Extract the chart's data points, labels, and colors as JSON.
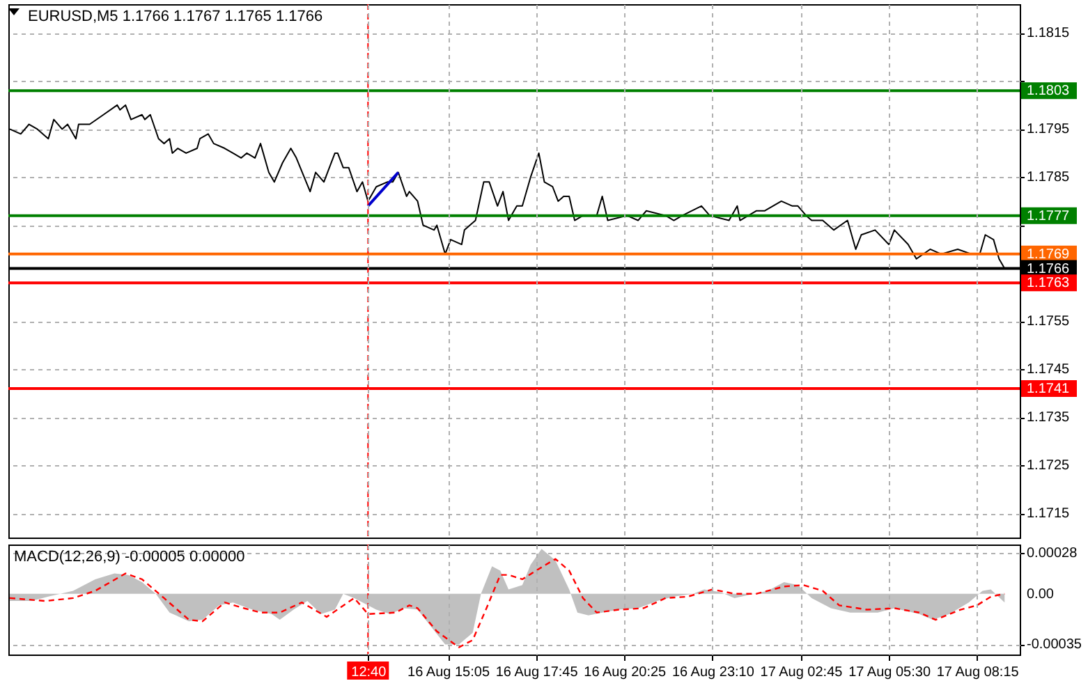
{
  "chart_data": [
    {
      "type": "line",
      "title": "EURUSD,M5 1.1766 1.1767 1.1765 1.1766",
      "categories": [
        null,
        null,
        null,
        null,
        null,
        null,
        null,
        null,
        null,
        null,
        null,
        null,
        null,
        null,
        null,
        null,
        null,
        null,
        null,
        null,
        null,
        null,
        null,
        null,
        null,
        null,
        null,
        null,
        null,
        null,
        null,
        null,
        null,
        null,
        null,
        null,
        null,
        null,
        null,
        null,
        null,
        null,
        null,
        null,
        null,
        null,
        null,
        null,
        null,
        null,
        null,
        null,
        null,
        null,
        null,
        null,
        null,
        null,
        null,
        null,
        null,
        null,
        null,
        null,
        null,
        null,
        null,
        null,
        null,
        null,
        null,
        null,
        null,
        null,
        null,
        null,
        null,
        null,
        null,
        null,
        null,
        null,
        null,
        null,
        null,
        null,
        null,
        null,
        null,
        null,
        null,
        null,
        null,
        null,
        null,
        null,
        null,
        null,
        null,
        null,
        null,
        null,
        null,
        null,
        null,
        null,
        null,
        null,
        null,
        null,
        null,
        null,
        null,
        null,
        null,
        null,
        null,
        null,
        null,
        null,
        null,
        null,
        null,
        null,
        null,
        null,
        null,
        null,
        null,
        null,
        "12:40",
        null,
        null,
        null,
        null,
        null,
        null,
        null,
        null,
        null,
        null,
        null,
        null,
        null,
        null,
        null,
        null,
        null,
        null,
        null,
        null,
        null,
        null,
        null,
        null,
        null,
        null,
        null,
        null,
        "16 Aug 15:05",
        null,
        null,
        null,
        null,
        null,
        null,
        null,
        null,
        null,
        null,
        null,
        null,
        null,
        null,
        null,
        null,
        null,
        null,
        null,
        null,
        null,
        null,
        null,
        null,
        null,
        null,
        null,
        null,
        null,
        null,
        null,
        "16 Aug 17:45",
        null,
        null,
        null,
        null,
        null,
        null,
        null,
        null,
        null,
        null,
        null,
        null,
        null,
        null,
        null,
        null,
        null,
        null,
        null,
        null,
        null,
        null,
        null,
        null,
        null,
        null,
        null,
        null,
        null,
        null,
        null,
        "16 Aug 20:25",
        null,
        null,
        null,
        null,
        null,
        null,
        null,
        null,
        null,
        null,
        null,
        null,
        null,
        null,
        null,
        null,
        null,
        null,
        null,
        null,
        null,
        null,
        null,
        null,
        null,
        null,
        null,
        null,
        null,
        null,
        null,
        "16 Aug 23:10",
        null,
        null,
        null,
        null,
        null,
        null,
        null,
        null,
        null,
        null,
        null,
        null,
        null,
        null,
        null,
        null,
        null,
        null,
        null,
        null,
        null,
        null,
        null,
        null,
        null,
        null,
        null,
        null,
        null,
        null,
        null,
        "17 Aug 02:45",
        null,
        null,
        null,
        null,
        null,
        null,
        null,
        null,
        null,
        null,
        null,
        null,
        null,
        null,
        null,
        null,
        null,
        null,
        null,
        null,
        null,
        null,
        null,
        null,
        null,
        null,
        null,
        null,
        null,
        null,
        null,
        "17 Aug 05:30",
        null,
        null,
        null,
        null,
        null,
        null,
        null,
        null,
        null,
        null,
        null,
        null,
        null,
        null,
        null,
        null,
        null,
        null,
        null,
        null,
        null,
        null,
        null,
        null,
        null,
        null,
        null,
        null,
        null,
        null,
        null,
        "17 Aug 08:15",
        null,
        null,
        null,
        null,
        null,
        null,
        null,
        null,
        null,
        null,
        null,
        null,
        null,
        null,
        null
      ],
      "series": [
        {
          "color": "#000000",
          "values": [
            1.1795,
            null,
            null,
            null,
            1.1794,
            null,
            null,
            1.1796,
            null,
            null,
            1.1795,
            null,
            null,
            null,
            1.1793,
            null,
            1.1797,
            null,
            null,
            1.1795,
            null,
            1.1796,
            null,
            null,
            1.1793,
            1.1796,
            null,
            null,
            null,
            1.1796,
            null,
            null,
            null,
            null,
            1.1798,
            null,
            null,
            null,
            null,
            1.18,
            1.1799,
            null,
            1.18,
            null,
            1.1797,
            null,
            null,
            null,
            1.1798,
            1.1797,
            null,
            1.1798,
            null,
            null,
            1.1793,
            null,
            1.1792,
            null,
            1.1793,
            1.179,
            null,
            1.1791,
            null,
            null,
            1.179,
            null,
            null,
            null,
            1.1791,
            1.1793,
            null,
            null,
            1.1794,
            null,
            1.1792,
            null,
            null,
            null,
            1.1791,
            null,
            null,
            1.179,
            null,
            null,
            1.1789,
            null,
            1.179,
            null,
            null,
            1.1789,
            null,
            1.1792,
            null,
            null,
            1.1786,
            null,
            1.1784,
            null,
            null,
            1.1788,
            null,
            null,
            1.1791,
            null,
            1.1789,
            null,
            null,
            null,
            null,
            1.1782,
            null,
            1.1786,
            null,
            null,
            1.1784,
            null,
            null,
            null,
            1.179,
            1.179,
            null,
            1.1787,
            null,
            1.1787,
            null,
            null,
            1.1782,
            null,
            1.1784,
            null,
            1.178,
            null,
            null,
            1.1783,
            null,
            null,
            null,
            1.1784,
            null,
            1.1784,
            null,
            1.1786,
            null,
            null,
            1.1781,
            1.1782,
            null,
            null,
            1.178,
            null,
            1.1775,
            null,
            null,
            null,
            1.1774,
            1.1775,
            null,
            null,
            1.1769,
            null,
            1.1772,
            null,
            null,
            null,
            1.1771,
            1.1774,
            null,
            null,
            null,
            1.1776,
            null,
            null,
            1.1784,
            null,
            1.1784,
            null,
            null,
            1.1779,
            null,
            1.1782,
            null,
            1.1776,
            null,
            null,
            1.1779,
            null,
            1.1779,
            null,
            null,
            1.1785,
            null,
            null,
            1.179,
            null,
            1.1784,
            null,
            null,
            1.1783,
            null,
            1.178,
            null,
            1.1781,
            null,
            1.1781,
            null,
            1.1776,
            null,
            null,
            1.1777,
            null,
            null,
            null,
            null,
            1.1777,
            null,
            1.1781,
            null,
            1.1776,
            null,
            null,
            null,
            null,
            null,
            null,
            1.1777,
            null,
            null,
            null,
            1.1776,
            null,
            null,
            1.1778,
            null,
            null,
            null,
            null,
            null,
            null,
            1.1777,
            null,
            null,
            1.1776,
            null,
            null,
            1.1777,
            null,
            null,
            null,
            null,
            null,
            null,
            1.1779,
            null,
            null,
            1.1777,
            null,
            null,
            null,
            null,
            null,
            null,
            1.1776,
            null,
            null,
            1.1779,
            1.1776,
            null,
            null,
            1.1777,
            null,
            null,
            1.1778,
            null,
            null,
            1.1778,
            null,
            null,
            null,
            null,
            null,
            1.178,
            null,
            null,
            null,
            1.1779,
            null,
            1.1779,
            null,
            null,
            1.1777,
            null,
            1.1776,
            null,
            null,
            null,
            1.1776,
            null,
            null,
            null,
            1.1774,
            null,
            null,
            null,
            null,
            1.1776,
            null,
            null,
            1.177,
            null,
            1.1773,
            null,
            null,
            null,
            null,
            1.1774,
            null,
            null,
            null,
            null,
            1.1771,
            null,
            1.1774,
            null,
            null,
            null,
            null,
            1.1771,
            null,
            null,
            1.1768,
            null,
            null,
            null,
            null,
            1.177,
            null,
            null,
            null,
            1.1769,
            null,
            null,
            null,
            null,
            null,
            1.177,
            null,
            null,
            null,
            null,
            1.1769,
            null,
            null,
            1.1769,
            null,
            1.1773,
            null,
            null,
            1.1772,
            null,
            1.1768,
            null,
            1.1766,
            null,
            null,
            null,
            null,
            null
          ]
        },
        {
          "color": "#0000cd",
          "values": [
            null,
            null,
            null,
            null,
            null,
            null,
            null,
            null,
            null,
            null,
            null,
            null,
            null,
            null,
            null,
            null,
            null,
            null,
            null,
            null,
            null,
            null,
            null,
            null,
            null,
            null,
            null,
            null,
            null,
            null,
            null,
            null,
            null,
            null,
            null,
            null,
            null,
            null,
            null,
            null,
            null,
            null,
            null,
            null,
            null,
            null,
            null,
            null,
            null,
            null,
            null,
            null,
            null,
            null,
            null,
            null,
            null,
            null,
            null,
            null,
            null,
            null,
            null,
            null,
            null,
            null,
            null,
            null,
            null,
            null,
            null,
            null,
            null,
            null,
            null,
            null,
            null,
            null,
            null,
            null,
            null,
            null,
            null,
            null,
            null,
            null,
            null,
            null,
            null,
            null,
            null,
            null,
            null,
            null,
            null,
            null,
            null,
            null,
            null,
            null,
            null,
            null,
            null,
            null,
            null,
            null,
            null,
            null,
            null,
            null,
            null,
            null,
            null,
            null,
            null,
            null,
            null,
            null,
            null,
            null,
            null,
            null,
            null,
            null,
            null,
            null,
            null,
            null,
            null,
            null,
            1.1779,
            null,
            null,
            null,
            null,
            null,
            null,
            null,
            null,
            null,
            null,
            1.1786,
            null,
            null,
            null,
            null,
            null,
            null,
            null,
            null,
            null,
            null,
            null,
            null,
            null,
            null,
            null,
            null,
            null,
            null,
            null,
            null,
            null,
            null,
            null,
            null,
            null,
            null,
            null,
            null,
            null,
            null,
            null,
            null,
            null,
            null,
            null,
            null,
            null,
            null,
            null,
            null,
            null,
            null,
            null,
            null,
            null,
            null,
            null,
            null,
            null,
            null,
            null,
            null,
            null,
            null,
            null,
            null,
            null,
            null,
            null,
            null,
            null,
            null,
            null,
            null,
            null,
            null,
            null,
            null,
            null,
            null,
            null,
            null,
            null,
            null,
            null,
            null,
            null,
            null,
            null,
            null,
            null,
            null,
            null,
            null,
            null,
            null,
            null,
            null,
            null,
            null,
            null,
            null,
            null,
            null,
            null,
            null,
            null,
            null,
            null,
            null,
            null,
            null,
            null,
            null,
            null,
            null,
            null,
            null,
            null,
            null,
            null,
            null,
            null,
            null,
            null,
            null,
            null,
            null,
            null,
            null,
            null,
            null,
            null,
            null,
            null,
            null,
            null,
            null,
            null,
            null,
            null,
            null,
            null,
            null,
            null,
            null,
            null,
            null,
            null,
            null,
            null,
            null,
            null,
            null,
            null,
            null,
            null,
            null,
            null,
            null,
            null,
            null,
            null,
            null,
            null,
            null,
            null,
            null,
            null,
            null,
            null,
            null,
            null,
            null,
            null,
            null,
            null,
            null,
            null,
            null,
            null,
            null,
            null,
            null,
            null,
            null,
            null,
            null,
            null,
            null,
            null,
            null,
            null,
            null,
            null,
            null,
            null,
            null,
            null,
            null,
            null,
            null,
            null,
            null,
            null,
            null,
            null,
            null,
            null,
            null,
            null,
            null,
            null,
            null,
            null,
            null,
            null,
            null,
            null,
            null,
            null,
            null,
            null,
            null,
            null,
            null,
            null,
            null,
            null,
            null,
            null,
            null,
            null,
            null,
            null
          ]
        }
      ],
      "ylim": [
        1.171,
        1.1821
      ],
      "yticks": [
        1.1715,
        1.1725,
        1.1735,
        1.1745,
        1.1755,
        {
          "value": 1.1775,
          "label": null
        },
        1.1785,
        1.1795,
        {
          "value": 1.1805,
          "label": null
        },
        1.1815
      ],
      "ref_lines": [
        {
          "axis": "y",
          "value": 1.1803,
          "label": "1.1803",
          "color": "#008000"
        },
        {
          "axis": "y",
          "value": 1.1777,
          "label": "1.1777",
          "color": "#008000"
        },
        {
          "axis": "y",
          "value": 1.1769,
          "label": "1.1769",
          "color": "#ff6600"
        },
        {
          "axis": "y",
          "value": 1.1766,
          "label": "1.1766",
          "color": "#000000"
        },
        {
          "axis": "y",
          "value": 1.1763,
          "label": "1.1763",
          "color": "#ff0000"
        },
        {
          "axis": "y",
          "value": 1.1741,
          "label": "1.1741",
          "color": "#ff0000"
        },
        {
          "axis": "x",
          "value": "12:40",
          "color": "#ff0000",
          "line_style": "dashed"
        }
      ],
      "grid": true,
      "tick_labels": "y"
    },
    {
      "type": "area",
      "title": "MACD(12,26,9) -0.00005 0.00000",
      "categories": [
        null,
        null,
        null,
        null,
        null,
        null,
        null,
        null,
        null,
        null,
        null,
        null,
        null,
        null,
        null,
        null,
        null,
        null,
        null,
        null,
        null,
        null,
        null,
        null,
        null,
        null,
        null,
        null,
        null,
        null,
        null,
        null,
        null,
        null,
        null,
        null,
        null,
        null,
        null,
        null,
        null,
        null,
        null,
        null,
        null,
        null,
        null,
        null,
        null,
        null,
        null,
        null,
        null,
        null,
        null,
        null,
        null,
        null,
        null,
        null,
        null,
        null,
        null,
        null,
        null,
        null,
        null,
        null,
        null,
        null,
        null,
        null,
        null,
        null,
        null,
        null,
        null,
        null,
        null,
        null,
        null,
        null,
        null,
        null,
        null,
        null,
        null,
        null,
        null,
        null,
        null,
        null,
        null,
        null,
        null,
        null,
        null,
        null,
        null,
        null,
        null,
        null,
        null,
        null,
        null,
        null,
        null,
        null,
        null,
        null,
        null,
        null,
        null,
        null,
        null,
        null,
        null,
        null,
        null,
        null,
        null,
        null,
        null,
        null,
        null,
        null,
        null,
        null,
        null,
        null,
        "12:40",
        null,
        null,
        null,
        null,
        null,
        null,
        null,
        null,
        null,
        null,
        null,
        null,
        null,
        null,
        null,
        null,
        null,
        null,
        null,
        null,
        null,
        null,
        null,
        null,
        null,
        null,
        null,
        null,
        "16 Aug 15:05",
        null,
        null,
        null,
        null,
        null,
        null,
        null,
        null,
        null,
        null,
        null,
        null,
        null,
        null,
        null,
        null,
        null,
        null,
        null,
        null,
        null,
        null,
        null,
        null,
        null,
        null,
        null,
        null,
        null,
        null,
        null,
        "16 Aug 17:45",
        null,
        null,
        null,
        null,
        null,
        null,
        null,
        null,
        null,
        null,
        null,
        null,
        null,
        null,
        null,
        null,
        null,
        null,
        null,
        null,
        null,
        null,
        null,
        null,
        null,
        null,
        null,
        null,
        null,
        null,
        null,
        "16 Aug 20:25",
        null,
        null,
        null,
        null,
        null,
        null,
        null,
        null,
        null,
        null,
        null,
        null,
        null,
        null,
        null,
        null,
        null,
        null,
        null,
        null,
        null,
        null,
        null,
        null,
        null,
        null,
        null,
        null,
        null,
        null,
        null,
        "16 Aug 23:10",
        null,
        null,
        null,
        null,
        null,
        null,
        null,
        null,
        null,
        null,
        null,
        null,
        null,
        null,
        null,
        null,
        null,
        null,
        null,
        null,
        null,
        null,
        null,
        null,
        null,
        null,
        null,
        null,
        null,
        null,
        null,
        "17 Aug 02:45",
        null,
        null,
        null,
        null,
        null,
        null,
        null,
        null,
        null,
        null,
        null,
        null,
        null,
        null,
        null,
        null,
        null,
        null,
        null,
        null,
        null,
        null,
        null,
        null,
        null,
        null,
        null,
        null,
        null,
        null,
        null,
        "17 Aug 05:30",
        null,
        null,
        null,
        null,
        null,
        null,
        null,
        null,
        null,
        null,
        null,
        null,
        null,
        null,
        null,
        null,
        null,
        null,
        null,
        null,
        null,
        null,
        null,
        null,
        null,
        null,
        null,
        null,
        null,
        null,
        null,
        "17 Aug 08:15",
        null,
        null,
        null,
        null,
        null,
        null,
        null,
        null,
        null,
        null,
        null,
        null,
        null,
        null,
        null
      ],
      "series": [
        {
          "color": "#c0c0c0",
          "values": [
            -5e-05,
            null,
            null,
            null,
            null,
            null,
            null,
            null,
            -5e-05,
            null,
            null,
            null,
            null,
            null,
            -2e-05,
            null,
            null,
            null,
            null,
            null,
            null,
            null,
            null,
            2e-05,
            null,
            null,
            null,
            null,
            null,
            null,
            null,
            0.0001,
            null,
            null,
            null,
            null,
            null,
            null,
            0.00014,
            null,
            null,
            null,
            null,
            0.00013,
            null,
            null,
            null,
            null,
            8e-05,
            null,
            null,
            null,
            null,
            0,
            null,
            null,
            null,
            null,
            -0.00013,
            null,
            null,
            null,
            null,
            null,
            null,
            -0.00019,
            null,
            null,
            null,
            null,
            -0.00018,
            null,
            null,
            null,
            null,
            null,
            -8e-05,
            null,
            null,
            null,
            null,
            -6e-05,
            null,
            null,
            null,
            null,
            null,
            null,
            -0.00011,
            null,
            null,
            null,
            null,
            null,
            null,
            -0.00014,
            null,
            null,
            -0.00018,
            null,
            null,
            null,
            null,
            -0.00011,
            null,
            null,
            null,
            null,
            -5e-05,
            null,
            null,
            null,
            null,
            -0.00014,
            null,
            null,
            null,
            null,
            -0.00011,
            null,
            null,
            0,
            null,
            null,
            null,
            -3e-05,
            null,
            null,
            null,
            null,
            -8e-05,
            null,
            null,
            -0.00011,
            null,
            null,
            null,
            null,
            -0.00014,
            null,
            null,
            null,
            null,
            -0.0001,
            null,
            null,
            null,
            null,
            -0.00011,
            null,
            null,
            null,
            null,
            -0.00023,
            null,
            null,
            null,
            null,
            -0.00035,
            null,
            null,
            null,
            null,
            -0.00035,
            null,
            null,
            null,
            null,
            -0.00027,
            null,
            null,
            0,
            null,
            null,
            null,
            0.00019,
            null,
            null,
            0.00016,
            null,
            null,
            3e-05,
            null,
            null,
            null,
            null,
            6e-05,
            null,
            null,
            0.0002,
            null,
            null,
            null,
            0.00031,
            null,
            null,
            null,
            null,
            0.00023,
            null,
            null,
            null,
            null,
            3e-05,
            null,
            null,
            -0.00013,
            null,
            null,
            null,
            -0.00015,
            null,
            null,
            null,
            null,
            -0.00013,
            null,
            null,
            null,
            null,
            null,
            -0.00011,
            null,
            null,
            null,
            null,
            null,
            null,
            -0.0001,
            null,
            null,
            null,
            null,
            null,
            null,
            -5e-05,
            null,
            null,
            null,
            null,
            null,
            -2e-05,
            null,
            null,
            null,
            null,
            null,
            null,
            0,
            null,
            null,
            null,
            3e-05,
            null,
            null,
            null,
            null,
            null,
            1e-05,
            null,
            null,
            null,
            null,
            -3e-05,
            null,
            null,
            null,
            null,
            null,
            null,
            0,
            null,
            null,
            null,
            null,
            2e-05,
            null,
            null,
            null,
            null,
            null,
            8e-05,
            null,
            null,
            null,
            null,
            6e-05,
            null,
            null,
            null,
            null,
            -3e-05,
            null,
            null,
            null,
            null,
            null,
            null,
            -0.0001,
            null,
            null,
            null,
            null,
            null,
            null,
            -0.00013,
            null,
            null,
            null,
            null,
            null,
            null,
            null,
            null,
            null,
            -0.00013,
            null,
            null,
            null,
            null,
            null,
            -0.0001,
            null,
            null,
            null,
            null,
            null,
            null,
            null,
            null,
            -0.00014,
            null,
            null,
            null,
            null,
            -0.00018,
            null,
            null,
            null,
            null,
            null,
            -0.00014,
            null,
            null,
            null,
            null,
            null,
            null,
            -6e-05,
            null,
            null,
            null,
            null,
            2e-05,
            null,
            null,
            3e-05,
            null,
            null,
            null,
            null,
            -6e-05,
            null,
            null,
            null,
            null,
            null
          ]
        },
        {
          "type": "line",
          "color": "#ff0000",
          "line_style": "dashed",
          "values": [
            -3e-05,
            null,
            null,
            null,
            null,
            null,
            null,
            null,
            null,
            null,
            null,
            null,
            null,
            -5e-05,
            null,
            null,
            null,
            null,
            null,
            null,
            null,
            null,
            null,
            -3e-05,
            null,
            null,
            null,
            null,
            null,
            null,
            null,
            2e-05,
            null,
            null,
            null,
            null,
            null,
            null,
            null,
            null,
            null,
            null,
            0.00014,
            null,
            null,
            null,
            null,
            null,
            0.0001,
            null,
            null,
            null,
            null,
            null,
            null,
            null,
            -3e-05,
            null,
            null,
            null,
            null,
            null,
            null,
            null,
            null,
            -0.00018,
            null,
            null,
            null,
            null,
            -0.00019,
            null,
            null,
            null,
            null,
            null,
            null,
            null,
            -6e-05,
            null,
            null,
            null,
            null,
            null,
            null,
            -0.0001,
            null,
            null,
            null,
            null,
            null,
            -0.00013,
            null,
            null,
            null,
            null,
            null,
            null,
            -0.00013,
            null,
            null,
            null,
            null,
            null,
            null,
            null,
            -6e-05,
            null,
            null,
            null,
            null,
            null,
            null,
            null,
            null,
            -0.00016,
            null,
            null,
            null,
            null,
            null,
            null,
            null,
            null,
            null,
            -3e-05,
            null,
            null,
            null,
            null,
            -0.00014,
            null,
            null,
            null,
            null,
            null,
            null,
            null,
            null,
            null,
            -0.00013,
            null,
            null,
            null,
            null,
            -8e-05,
            null,
            null,
            -0.0001,
            null,
            null,
            null,
            null,
            null,
            null,
            -0.00026,
            null,
            null,
            null,
            null,
            null,
            null,
            null,
            -0.00037,
            null,
            null,
            null,
            null,
            -0.00032,
            null,
            null,
            null,
            null,
            -0.0001,
            null,
            null,
            null,
            null,
            0.00013,
            null,
            null,
            0.00013,
            null,
            null,
            null,
            null,
            0.0001,
            null,
            null,
            null,
            null,
            0.00016,
            null,
            null,
            null,
            null,
            null,
            null,
            0.00024,
            null,
            null,
            null,
            null,
            0.00016,
            null,
            null,
            null,
            null,
            -3e-05,
            null,
            null,
            null,
            null,
            -0.00013,
            null,
            null,
            null,
            null,
            null,
            null,
            null,
            -0.00011,
            null,
            null,
            null,
            null,
            null,
            null,
            null,
            null,
            -0.0001,
            null,
            null,
            null,
            null,
            null,
            null,
            null,
            -3e-05,
            null,
            null,
            null,
            null,
            null,
            null,
            null,
            -2e-05,
            null,
            null,
            null,
            null,
            null,
            null,
            null,
            null,
            3e-05,
            null,
            null,
            null,
            null,
            null,
            null,
            null,
            0,
            null,
            null,
            null,
            null,
            null,
            null,
            null,
            0,
            null,
            null,
            null,
            null,
            null,
            null,
            null,
            null,
            null,
            5e-05,
            null,
            null,
            null,
            null,
            null,
            null,
            6e-05,
            null,
            null,
            null,
            null,
            null,
            null,
            2e-05,
            null,
            null,
            null,
            null,
            null,
            -8e-05,
            null,
            null,
            null,
            null,
            null,
            null,
            null,
            null,
            null,
            -0.00011,
            null,
            null,
            null,
            null,
            null,
            null,
            null,
            null,
            null,
            -0.0001,
            null,
            null,
            null,
            null,
            null,
            null,
            null,
            null,
            -0.00013,
            null,
            null,
            null,
            null,
            null,
            -0.00018,
            null,
            null,
            null,
            null,
            null,
            null,
            null,
            null,
            -0.00011,
            null,
            null,
            null,
            null,
            null,
            -8e-05,
            null,
            null,
            null,
            null,
            -2e-05,
            null,
            null,
            null,
            null,
            0,
            null,
            null,
            null,
            null,
            null
          ]
        }
      ],
      "ylim": [
        -0.00042,
        0.00034
      ],
      "yticks": [
        0.00028,
        {
          "value": 0,
          "label": "0.00"
        },
        -0.00035
      ],
      "ref_lines": [
        {
          "axis": "x",
          "value": "12:40",
          "color": "#ff0000",
          "line_style": "dashed"
        }
      ],
      "grid": true
    }
  ]
}
